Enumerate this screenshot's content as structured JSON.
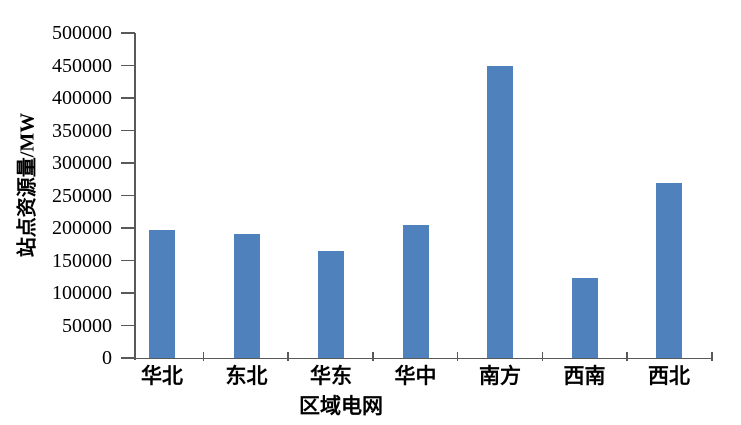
{
  "chart_data": {
    "type": "bar",
    "title": "",
    "categories": [
      "华北",
      "东北",
      "华东",
      "华中",
      "南方",
      "西南",
      "西北"
    ],
    "values": [
      197000,
      191000,
      165000,
      204000,
      450000,
      123000,
      270000
    ],
    "xlabel": "区域电网",
    "ylabel": "站点资源量/MW",
    "ylim": [
      0,
      500000
    ],
    "ytick_step": 50000,
    "ytick_labels": [
      "0",
      "50000",
      "100000",
      "150000",
      "200000",
      "250000",
      "300000",
      "350000",
      "400000",
      "450000",
      "500000"
    ],
    "grid": false,
    "legend": "none",
    "colors": {
      "bar": "#4f81bd",
      "axis": "#595959",
      "tick": "#595959",
      "text": "#000000",
      "background": "#ffffff"
    }
  }
}
